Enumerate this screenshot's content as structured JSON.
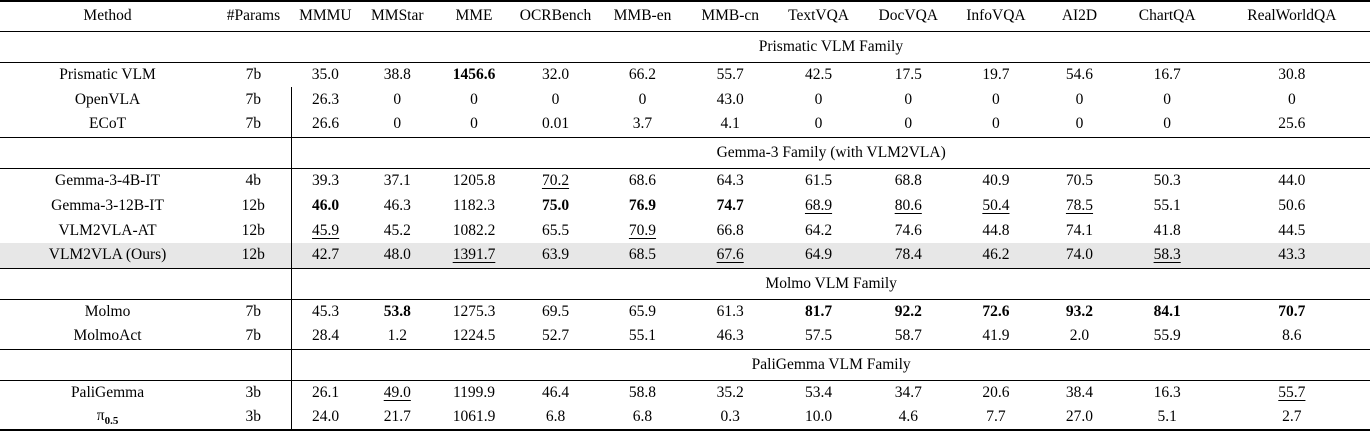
{
  "table": {
    "highlight_color": "#e7e7e7",
    "columns": [
      "Method",
      "#Params",
      "MMMU",
      "MMStar",
      "MME",
      "OCRBench",
      "MMB-en",
      "MMB-cn",
      "TextVQA",
      "DocVQA",
      "InfoVQA",
      "AI2D",
      "ChartQA",
      "RealWorldQA"
    ],
    "col_widths": [
      "15.7%",
      "5.6%",
      "4.9%",
      "5.6%",
      "5.6%",
      "6.3%",
      "6.4%",
      "6.4%",
      "6.5%",
      "6.6%",
      "6.2%",
      "6.0%",
      "6.8%",
      "11.4%"
    ],
    "sections": [
      {
        "title": "Prismatic VLM Family",
        "vline": false,
        "rows": [
          {
            "method": "Prismatic VLM",
            "params": "7b",
            "vline": false,
            "values": [
              "35.0",
              "38.8",
              "1456.6",
              "32.0",
              "66.2",
              "55.7",
              "42.5",
              "17.5",
              "19.7",
              "54.6",
              "16.7",
              "30.8"
            ],
            "styles": [
              "",
              "",
              "b",
              "",
              "",
              "",
              "",
              "",
              "",
              "",
              "",
              ""
            ]
          },
          {
            "method": "OpenVLA",
            "params": "7b",
            "values": [
              "26.3",
              "0",
              "0",
              "0",
              "0",
              "43.0",
              "0",
              "0",
              "0",
              "0",
              "0",
              "0"
            ],
            "styles": [
              "",
              "",
              "",
              "",
              "",
              "",
              "",
              "",
              "",
              "",
              "",
              ""
            ]
          },
          {
            "method": "ECoT",
            "params": "7b",
            "values": [
              "26.6",
              "0",
              "0",
              "0.01",
              "3.7",
              "4.1",
              "0",
              "0",
              "0",
              "0",
              "0",
              "25.6"
            ],
            "styles": [
              "",
              "",
              "",
              "",
              "",
              "",
              "",
              "",
              "",
              "",
              "",
              ""
            ]
          }
        ]
      },
      {
        "title": "Gemma-3 Family (with VLM2VLA)",
        "vline": true,
        "rows": [
          {
            "method": "Gemma-3-4B-IT",
            "params": "4b",
            "values": [
              "39.3",
              "37.1",
              "1205.8",
              "70.2",
              "68.6",
              "64.3",
              "61.5",
              "68.8",
              "40.9",
              "70.5",
              "50.3",
              "44.0"
            ],
            "styles": [
              "",
              "",
              "",
              "u",
              "",
              "",
              "",
              "",
              "",
              "",
              "",
              ""
            ]
          },
          {
            "method": "Gemma-3-12B-IT",
            "params": "12b",
            "values": [
              "46.0",
              "46.3",
              "1182.3",
              "75.0",
              "76.9",
              "74.7",
              "68.9",
              "80.6",
              "50.4",
              "78.5",
              "55.1",
              "50.6"
            ],
            "styles": [
              "b",
              "",
              "",
              "b",
              "b",
              "b",
              "u",
              "u",
              "u",
              "u",
              "",
              ""
            ]
          },
          {
            "method": "VLM2VLA-AT",
            "params": "12b",
            "values": [
              "45.9",
              "45.2",
              "1082.2",
              "65.5",
              "70.9",
              "66.8",
              "64.2",
              "74.6",
              "44.8",
              "74.1",
              "41.8",
              "44.5"
            ],
            "styles": [
              "u",
              "",
              "",
              "",
              "u",
              "",
              "",
              "",
              "",
              "",
              "",
              ""
            ]
          },
          {
            "method": "VLM2VLA (Ours)",
            "params": "12b",
            "highlight": true,
            "values": [
              "42.7",
              "48.0",
              "1391.7",
              "63.9",
              "68.5",
              "67.6",
              "64.9",
              "78.4",
              "46.2",
              "74.0",
              "58.3",
              "43.3"
            ],
            "styles": [
              "",
              "",
              "u",
              "",
              "",
              "u",
              "",
              "",
              "",
              "",
              "u",
              ""
            ]
          }
        ]
      },
      {
        "title": "Molmo VLM Family",
        "vline": true,
        "rows": [
          {
            "method": "Molmo",
            "params": "7b",
            "values": [
              "45.3",
              "53.8",
              "1275.3",
              "69.5",
              "65.9",
              "61.3",
              "81.7",
              "92.2",
              "72.6",
              "93.2",
              "84.1",
              "70.7"
            ],
            "styles": [
              "",
              "b",
              "",
              "",
              "",
              "",
              "b",
              "b",
              "b",
              "b",
              "b",
              "b"
            ]
          },
          {
            "method": "MolmoAct",
            "params": "7b",
            "values": [
              "28.4",
              "1.2",
              "1224.5",
              "52.7",
              "55.1",
              "46.3",
              "57.5",
              "58.7",
              "41.9",
              "2.0",
              "55.9",
              "8.6"
            ],
            "styles": [
              "",
              "",
              "",
              "",
              "",
              "",
              "",
              "",
              "",
              "",
              "",
              ""
            ]
          }
        ]
      },
      {
        "title": "PaliGemma VLM Family",
        "vline": true,
        "rows": [
          {
            "method": "PaliGemma",
            "params": "3b",
            "values": [
              "26.1",
              "49.0",
              "1199.9",
              "46.4",
              "58.8",
              "35.2",
              "53.4",
              "34.7",
              "20.6",
              "38.4",
              "16.3",
              "55.7"
            ],
            "styles": [
              "",
              "u",
              "",
              "",
              "",
              "",
              "",
              "",
              "",
              "",
              "",
              "u"
            ]
          },
          {
            "method": "π",
            "method_sub": "0.5",
            "params": "3b",
            "values": [
              "24.0",
              "21.7",
              "1061.9",
              "6.8",
              "6.8",
              "0.3",
              "10.0",
              "4.6",
              "7.7",
              "27.0",
              "5.1",
              "2.7"
            ],
            "styles": [
              "",
              "",
              "",
              "",
              "",
              "",
              "",
              "",
              "",
              "",
              "",
              ""
            ]
          }
        ]
      }
    ]
  }
}
